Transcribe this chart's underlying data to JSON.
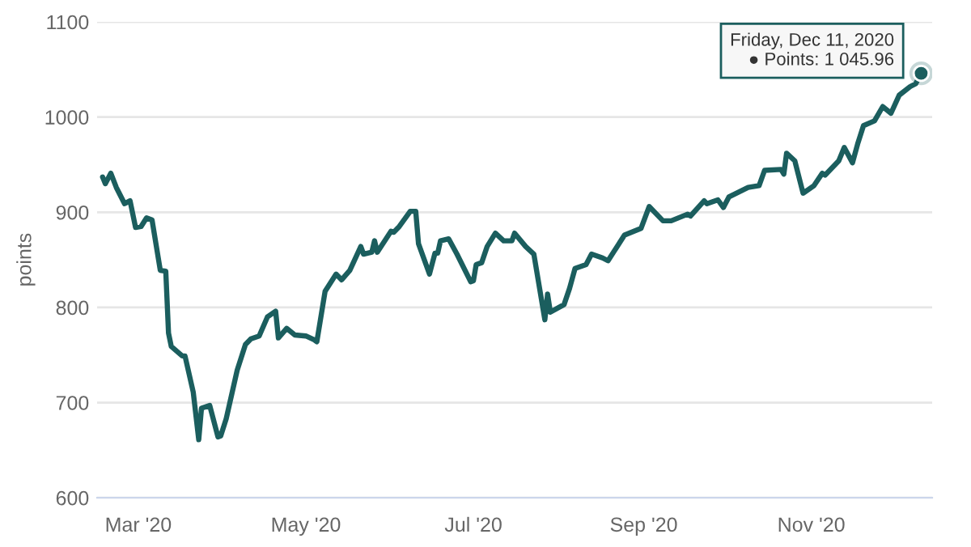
{
  "chart_data": {
    "type": "line",
    "ylabel": "points",
    "ylim": [
      600,
      1100
    ],
    "yticks": [
      600,
      700,
      800,
      900,
      1000,
      1100
    ],
    "xlim": [
      "2020-02-15",
      "2020-12-15"
    ],
    "xticks": [
      {
        "value": "2020-03-01",
        "label": "Mar '20"
      },
      {
        "value": "2020-05-01",
        "label": "May '20"
      },
      {
        "value": "2020-07-01",
        "label": "Jul '20"
      },
      {
        "value": "2020-09-01",
        "label": "Sep '20"
      },
      {
        "value": "2020-11-01",
        "label": "Nov '20"
      }
    ],
    "grid": "y",
    "legend": false,
    "marker": "none",
    "line_style": "solid",
    "series": [
      {
        "color": "#1b5e5e",
        "x": [
          "2020-02-17",
          "2020-02-18",
          "2020-02-20",
          "2020-02-22",
          "2020-02-25",
          "2020-02-27",
          "2020-02-28",
          "2020-02-29",
          "2020-03-02",
          "2020-03-04",
          "2020-03-06",
          "2020-03-09",
          "2020-03-11",
          "2020-03-12",
          "2020-03-13",
          "2020-03-17",
          "2020-03-18",
          "2020-03-21",
          "2020-03-23",
          "2020-03-24",
          "2020-03-27",
          "2020-03-30",
          "2020-03-31",
          "2020-04-02",
          "2020-04-06",
          "2020-04-09",
          "2020-04-11",
          "2020-04-14",
          "2020-04-17",
          "2020-04-20",
          "2020-04-21",
          "2020-04-24",
          "2020-04-27",
          "2020-05-01",
          "2020-05-04",
          "2020-05-05",
          "2020-05-08",
          "2020-05-12",
          "2020-05-14",
          "2020-05-17",
          "2020-05-21",
          "2020-05-22",
          "2020-05-25",
          "2020-05-26",
          "2020-05-27",
          "2020-06-01",
          "2020-06-02",
          "2020-06-04",
          "2020-06-08",
          "2020-06-10",
          "2020-06-11",
          "2020-06-15",
          "2020-06-17",
          "2020-06-18",
          "2020-06-19",
          "2020-06-22",
          "2020-06-25",
          "2020-06-30",
          "2020-07-01",
          "2020-07-02",
          "2020-07-04",
          "2020-07-06",
          "2020-07-09",
          "2020-07-12",
          "2020-07-15",
          "2020-07-16",
          "2020-07-20",
          "2020-07-23",
          "2020-07-27",
          "2020-07-28",
          "2020-07-29",
          "2020-08-03",
          "2020-08-05",
          "2020-08-07",
          "2020-08-11",
          "2020-08-13",
          "2020-08-17",
          "2020-08-19",
          "2020-08-25",
          "2020-08-31",
          "2020-09-03",
          "2020-09-08",
          "2020-09-11",
          "2020-09-17",
          "2020-09-18",
          "2020-09-23",
          "2020-09-24",
          "2020-09-28",
          "2020-09-30",
          "2020-10-02",
          "2020-10-09",
          "2020-10-13",
          "2020-10-15",
          "2020-10-21",
          "2020-10-22",
          "2020-10-23",
          "2020-10-26",
          "2020-10-29",
          "2020-11-02",
          "2020-11-05",
          "2020-11-06",
          "2020-11-11",
          "2020-11-13",
          "2020-11-16",
          "2020-11-18",
          "2020-11-20",
          "2020-11-24",
          "2020-11-27",
          "2020-11-30",
          "2020-12-03",
          "2020-12-07",
          "2020-12-09",
          "2020-12-11"
        ],
        "values": [
          937,
          930,
          941,
          926,
          909,
          912,
          898,
          884,
          885,
          894,
          892,
          839,
          838,
          773,
          759,
          749,
          749,
          711,
          661,
          694,
          697,
          664,
          665,
          683,
          734,
          761,
          767,
          770,
          790,
          796,
          768,
          778,
          771,
          770,
          766,
          764,
          817,
          835,
          829,
          839,
          864,
          856,
          858,
          870,
          858,
          880,
          879,
          885,
          901,
          901,
          867,
          835,
          857,
          857,
          870,
          872,
          856,
          827,
          828,
          845,
          847,
          864,
          878,
          870,
          870,
          878,
          864,
          856,
          787,
          814,
          795,
          803,
          820,
          841,
          845,
          856,
          852,
          849,
          876,
          883,
          906,
          891,
          891,
          898,
          896,
          912,
          909,
          913,
          905,
          916,
          926,
          928,
          944,
          945,
          940,
          962,
          954,
          920,
          928,
          941,
          939,
          954,
          968,
          952,
          973,
          991,
          996,
          1011,
          1004,
          1023,
          1032,
          1035,
          1045.96
        ]
      }
    ],
    "annotations": [
      {
        "text": "Friday, Dec 11, 2020\n● Points: 1 045.96",
        "x": "2020-12-11",
        "y": 1045.96
      }
    ]
  }
}
